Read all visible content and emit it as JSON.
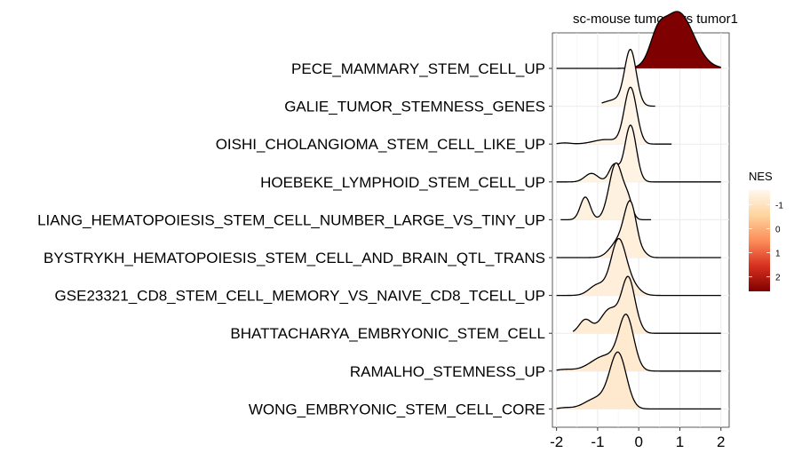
{
  "chart_data": {
    "type": "ridgeline",
    "title": "sc-mouse tumor2 vs tumor1",
    "xlabel": "",
    "ylabel": "",
    "xlim": [
      -2.1,
      2.2
    ],
    "x_ticks": [
      -2,
      -1,
      0,
      1,
      2
    ],
    "grid": true,
    "legend": {
      "title": "NES",
      "position": "right",
      "ticks": [
        -1,
        0,
        1,
        2
      ],
      "range": [
        -1.6,
        2.6
      ],
      "colors": [
        "#fff7ec",
        "#fdd49e",
        "#fc8d59",
        "#d7301f",
        "#7f0000"
      ]
    },
    "series": [
      {
        "name": "PECE_MAMMARY_STEM_CELL_UP",
        "nes": 2.6,
        "fill": "#7f0000",
        "peaks": [
          {
            "center": 0.95,
            "sd": 0.38,
            "weight": 1.0
          },
          {
            "center": 0.45,
            "sd": 0.18,
            "weight": 0.35
          }
        ],
        "range": [
          -2.0,
          2.0
        ]
      },
      {
        "name": "GALIE_TUMOR_STEMNESS_GENES",
        "nes": -1.5,
        "fill": "#fff7ec",
        "peaks": [
          {
            "center": -0.2,
            "sd": 0.14,
            "weight": 1.0
          },
          {
            "center": -0.55,
            "sd": 0.3,
            "weight": 0.12
          }
        ],
        "range": [
          -0.9,
          0.4
        ]
      },
      {
        "name": "OISHI_CHOLANGIOMA_STEM_CELL_LIKE_UP",
        "nes": -1.45,
        "fill": "#fff4e6",
        "peaks": [
          {
            "center": -0.2,
            "sd": 0.15,
            "weight": 1.0
          },
          {
            "center": -0.8,
            "sd": 0.3,
            "weight": 0.08
          },
          {
            "center": -1.8,
            "sd": 0.15,
            "weight": 0.02
          }
        ],
        "range": [
          -2.0,
          0.8
        ]
      },
      {
        "name": "HOEBEKE_LYMPHOID_STEM_CELL_UP",
        "nes": -1.4,
        "fill": "#fff3e3",
        "peaks": [
          {
            "center": -0.2,
            "sd": 0.14,
            "weight": 1.0
          },
          {
            "center": -0.6,
            "sd": 0.12,
            "weight": 0.3
          },
          {
            "center": -1.15,
            "sd": 0.16,
            "weight": 0.15
          }
        ],
        "range": [
          -2.0,
          2.0
        ]
      },
      {
        "name": "LIANG_HEMATOPOIESIS_STEM_CELL_NUMBER_LARGE_VS_TINY_UP",
        "nes": -1.35,
        "fill": "#fff1df",
        "peaks": [
          {
            "center": -0.55,
            "sd": 0.17,
            "weight": 1.0
          },
          {
            "center": -0.25,
            "sd": 0.1,
            "weight": 0.25
          },
          {
            "center": -1.3,
            "sd": 0.12,
            "weight": 0.4
          }
        ],
        "range": [
          -1.9,
          0.3
        ]
      },
      {
        "name": "BYSTRYKH_HEMATOPOIESIS_STEM_CELL_AND_BRAIN_QTL_TRANS",
        "nes": -1.3,
        "fill": "#ffefdb",
        "peaks": [
          {
            "center": -0.2,
            "sd": 0.15,
            "weight": 1.0
          },
          {
            "center": -0.5,
            "sd": 0.2,
            "weight": 0.3
          },
          {
            "center": 0.15,
            "sd": 0.1,
            "weight": 0.05
          }
        ],
        "range": [
          -2.0,
          2.0
        ]
      },
      {
        "name": "GSE23321_CD8_STEM_CELL_MEMORY_VS_NAIVE_CD8_TCELL_UP",
        "nes": -1.25,
        "fill": "#ffeed9",
        "peaks": [
          {
            "center": -0.5,
            "sd": 0.18,
            "weight": 1.0
          },
          {
            "center": -1.0,
            "sd": 0.2,
            "weight": 0.2
          },
          {
            "center": -0.2,
            "sd": 0.2,
            "weight": 0.2
          }
        ],
        "range": [
          -2.0,
          2.0
        ]
      },
      {
        "name": "BHATTACHARYA_EMBRYONIC_STEM_CELL",
        "nes": -1.2,
        "fill": "#ffecd4",
        "peaks": [
          {
            "center": -0.25,
            "sd": 0.16,
            "weight": 1.0
          },
          {
            "center": -0.7,
            "sd": 0.22,
            "weight": 0.45
          },
          {
            "center": -1.3,
            "sd": 0.15,
            "weight": 0.25
          },
          {
            "center": 0.05,
            "sd": 0.1,
            "weight": 0.03
          }
        ],
        "range": [
          -1.6,
          2.0
        ]
      },
      {
        "name": "RAMALHO_STEMNESS_UP",
        "nes": -1.15,
        "fill": "#ffead0",
        "peaks": [
          {
            "center": -0.3,
            "sd": 0.18,
            "weight": 1.0
          },
          {
            "center": -0.8,
            "sd": 0.35,
            "weight": 0.3
          },
          {
            "center": -1.8,
            "sd": 0.2,
            "weight": 0.03
          }
        ],
        "range": [
          -2.0,
          2.0
        ]
      },
      {
        "name": "WONG_EMBRYONIC_STEM_CELL_CORE",
        "nes": -1.1,
        "fill": "#ffe9ce",
        "peaks": [
          {
            "center": -0.5,
            "sd": 0.2,
            "weight": 1.0
          },
          {
            "center": -1.0,
            "sd": 0.3,
            "weight": 0.2
          },
          {
            "center": -1.8,
            "sd": 0.15,
            "weight": 0.02
          }
        ],
        "range": [
          -2.0,
          2.0
        ]
      }
    ]
  }
}
